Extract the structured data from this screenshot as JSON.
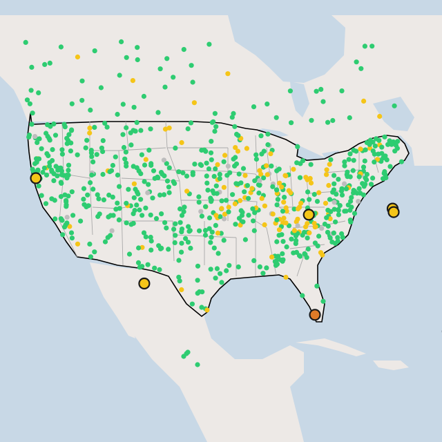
{
  "map": {
    "colors": {
      "water": "#c8d8e6",
      "land": "#ede9e6",
      "land_alt": "#e8e3df",
      "us_outline": "#000000",
      "state_borders": "#a9a9a9",
      "green": "#2ecc71",
      "yellow": "#f5c518",
      "orange": "#e07b28",
      "grey": "#bdbdbd"
    },
    "markers": {
      "large": [
        {
          "name": "big-marker-portland",
          "lon": -122.7,
          "lat": 45.5,
          "status": "yellow"
        },
        {
          "name": "big-marker-phoenix",
          "lon": -112.1,
          "lat": 33.4,
          "status": "yellow"
        },
        {
          "name": "big-marker-omaha",
          "lon": -96.0,
          "lat": 41.3,
          "status": "yellow"
        },
        {
          "name": "big-marker-chicago-1",
          "lon": -87.8,
          "lat": 42.0,
          "status": "yellow"
        },
        {
          "name": "big-marker-chicago-2",
          "lon": -87.7,
          "lat": 41.6,
          "status": "yellow"
        },
        {
          "name": "big-marker-houston",
          "lon": -95.4,
          "lat": 29.8,
          "status": "orange"
        },
        {
          "name": "big-marker-jacksonville",
          "lon": -81.7,
          "lat": 30.3,
          "status": "yellow"
        },
        {
          "name": "big-marker-tampa",
          "lon": -82.4,
          "lat": 27.9,
          "status": "yellow"
        }
      ]
    }
  }
}
